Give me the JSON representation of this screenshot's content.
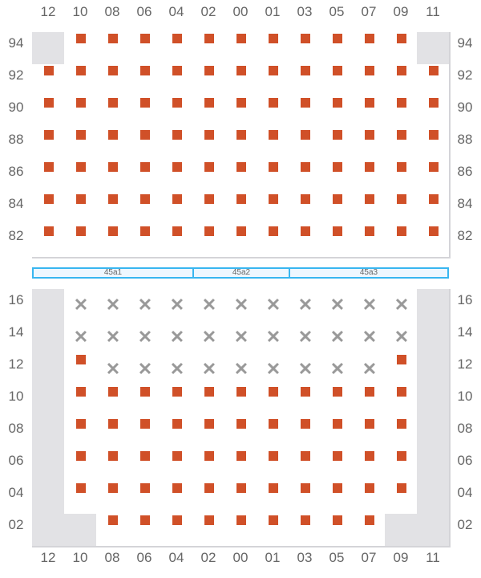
{
  "columns": [
    "12",
    "10",
    "08",
    "06",
    "04",
    "02",
    "00",
    "01",
    "03",
    "05",
    "07",
    "09",
    "11"
  ],
  "top_section": {
    "rows": [
      {
        "label": "94",
        "cells": "EPPPPPPPPPPPE"
      },
      {
        "label": "92",
        "cells": "PPPPPPPPPPPPP"
      },
      {
        "label": "90",
        "cells": "PPPPPPPPPPPPP"
      },
      {
        "label": "88",
        "cells": "PPPPPPPPPPPPP"
      },
      {
        "label": "86",
        "cells": "PPPPPPPPPPPPP"
      },
      {
        "label": "84",
        "cells": "PPPPPPPPPPPPP"
      },
      {
        "label": "82",
        "cells": "PPPPPPPPPPPPP"
      }
    ]
  },
  "segments": [
    {
      "label": "45a1",
      "span": [
        0,
        5
      ]
    },
    {
      "label": "45a2",
      "span": [
        5,
        8
      ]
    },
    {
      "label": "45a3",
      "span": [
        8,
        13
      ]
    }
  ],
  "bottom_section": {
    "rows": [
      {
        "label": "16",
        "cells": "EXXXXXXXXXXXE"
      },
      {
        "label": "14",
        "cells": "EXXXXXXXXXXXE"
      },
      {
        "label": "12",
        "cells": "EPXXXXXXXXXPE"
      },
      {
        "label": "10",
        "cells": "EPPPPPPPPPPPE"
      },
      {
        "label": "08",
        "cells": "EPPPPPPPPPPPE"
      },
      {
        "label": "06",
        "cells": "EPPPPPPPPPPPE"
      },
      {
        "label": "04",
        "cells": "EPPPPPPPPPPPE"
      },
      {
        "label": "02",
        "cells": "EEPPPPPPPPPEE"
      }
    ]
  },
  "legend_codes": {
    "P": "occupied-square",
    "X": "blocked-x",
    "E": "empty-grey"
  },
  "colors": {
    "occupied": "#d05028",
    "empty": "#e2e2e5",
    "segment_border": "#38b6f0",
    "blocked": "#999999"
  }
}
